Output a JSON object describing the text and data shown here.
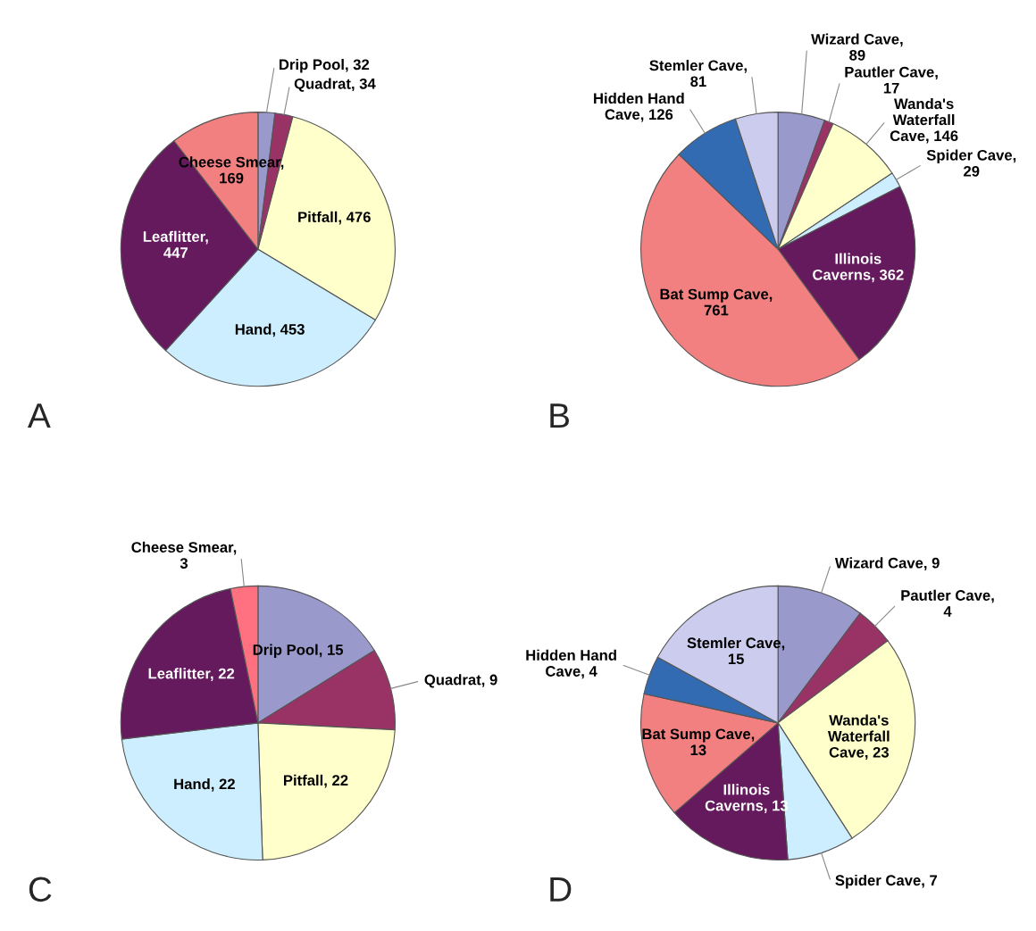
{
  "chart_data": [
    {
      "type": "pie",
      "title": "A",
      "categories": [
        "Drip Pool, 32",
        "Quadrat, 34",
        "Pitfall, 476",
        "Hand, 453",
        "Leaflitter, 447",
        "Cheese Smear, 169"
      ],
      "values": [
        32,
        34,
        476,
        453,
        447,
        169
      ],
      "colors": [
        "#9999cc",
        "#993366",
        "#ffffcc",
        "#cceeff",
        "#661a5e",
        "#f28080"
      ]
    },
    {
      "type": "pie",
      "title": "B",
      "categories": [
        "Wizard Cave, 89",
        "Pautler Cave, 17",
        "Wanda's Waterfall Cave, 146",
        "Spider Cave, 29",
        "Illinois Caverns, 362",
        "Bat Sump Cave, 761",
        "Hidden Hand Cave, 126",
        "Stemler Cave, 81"
      ],
      "values": [
        89,
        17,
        146,
        29,
        362,
        761,
        126,
        81
      ],
      "colors": [
        "#9999cc",
        "#993366",
        "#ffffcc",
        "#cceeff",
        "#661a5e",
        "#f28080",
        "#336bb3",
        "#ccccee"
      ]
    },
    {
      "type": "pie",
      "title": "C",
      "categories": [
        "Drip Pool, 15",
        "Quadrat, 9",
        "Pitfall, 22",
        "Hand, 22",
        "Leaflitter, 22",
        "Cheese Smear, 3"
      ],
      "values": [
        15,
        9,
        22,
        22,
        22,
        3
      ],
      "colors": [
        "#9999cc",
        "#993366",
        "#ffffcc",
        "#cceeff",
        "#661a5e",
        "#ff7080"
      ]
    },
    {
      "type": "pie",
      "title": "D",
      "categories": [
        "Wizard Cave, 9",
        "Pautler Cave, 4",
        "Wanda's Waterfall Cave, 23",
        "Spider Cave, 7",
        "Illinois Caverns, 13",
        "Bat Sump Cave, 13",
        "Hidden Hand Cave, 4",
        "Stemler Cave, 15"
      ],
      "values": [
        9,
        4,
        23,
        7,
        13,
        13,
        4,
        15
      ],
      "colors": [
        "#9999cc",
        "#993366",
        "#ffffcc",
        "#cceeff",
        "#661a5e",
        "#f28080",
        "#336bb3",
        "#ccccee"
      ]
    }
  ]
}
